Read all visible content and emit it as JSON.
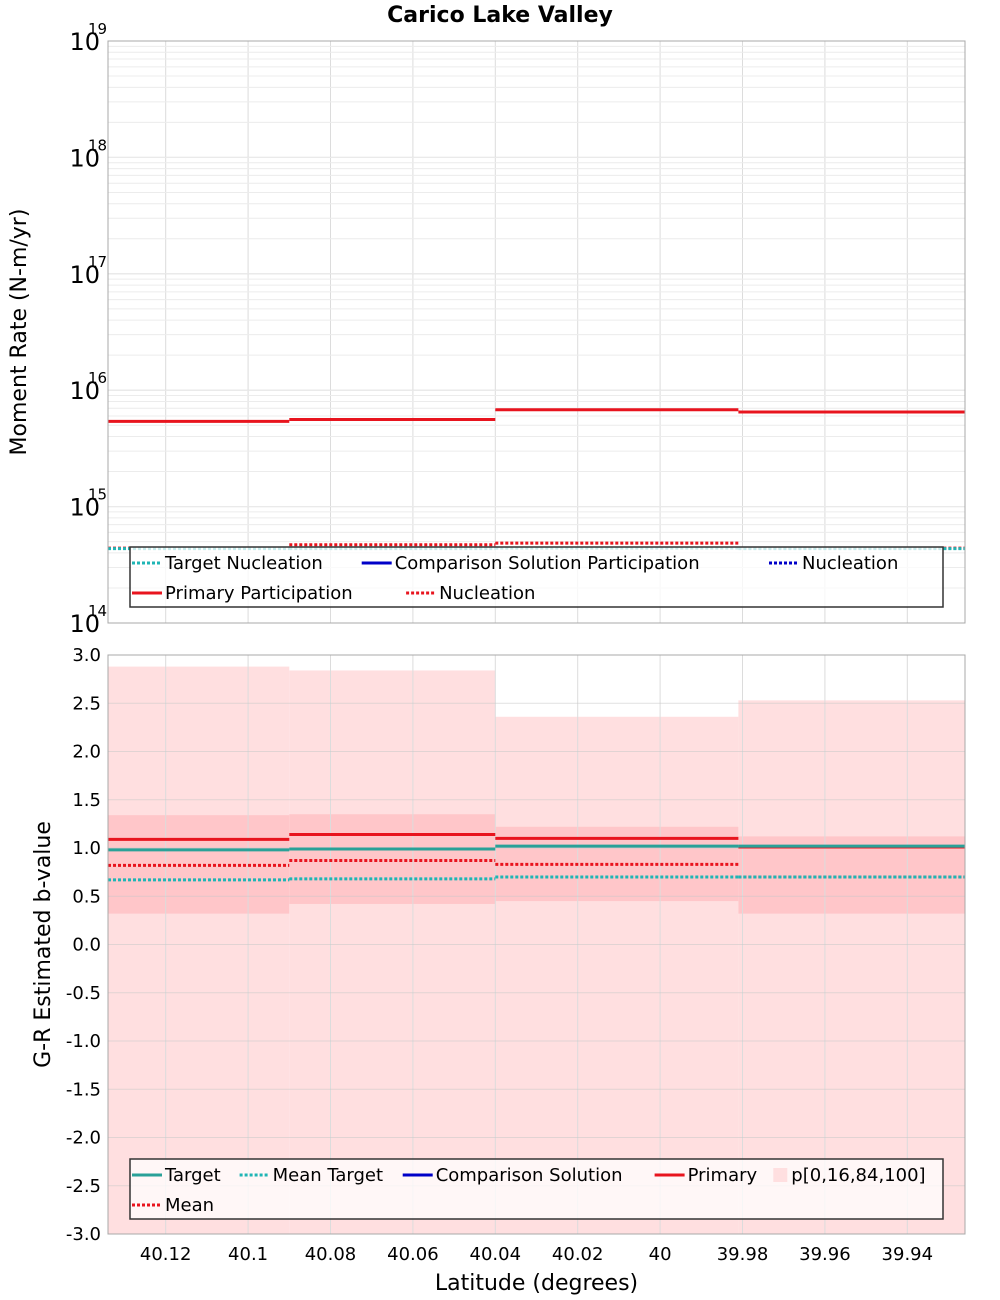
{
  "colors": {
    "target": "#2aa198",
    "mean_target": "#1fb5b5",
    "comparison": "#0000c8",
    "primary": "#e8141e",
    "band_outer": "#ffdfe0",
    "band_inner": "#ffc6c9"
  },
  "chart_data": [
    {
      "type": "line",
      "title": "Carico Lake Valley",
      "xlabel": "",
      "ylabel": "Moment Rate (N-m/yr)",
      "y_scale": "log",
      "ylim": [
        100000000000000.0,
        1e+19
      ],
      "xlim": [
        40.134,
        39.926
      ],
      "x_reversed": true,
      "grid": true,
      "legend_position": "bottom",
      "y_ticks": [
        {
          "base": "10",
          "exp": "14"
        },
        {
          "base": "10",
          "exp": "15"
        },
        {
          "base": "10",
          "exp": "16"
        },
        {
          "base": "10",
          "exp": "17"
        },
        {
          "base": "10",
          "exp": "18"
        },
        {
          "base": "10",
          "exp": "19"
        }
      ],
      "bin_edges": [
        40.134,
        40.09,
        40.04,
        39.981,
        39.926
      ],
      "series": [
        {
          "name": "Primary Participation",
          "style": "solid",
          "color": "primary",
          "values": [
            5400000000000000.0,
            5600000000000000.0,
            6800000000000000.0,
            6500000000000000.0
          ]
        },
        {
          "name": "Nucleation",
          "style": "dotted",
          "color": "primary",
          "values": [
            440000000000000.0,
            470000000000000.0,
            485000000000000.0,
            440000000000000.0
          ]
        },
        {
          "name": "Target Nucleation",
          "style": "dotted",
          "color": "mean_target",
          "values": [
            435000000000000.0,
            435000000000000.0,
            440000000000000.0,
            435000000000000.0
          ]
        },
        {
          "name": "Comparison Solution Participation",
          "style": "solid",
          "color": "comparison",
          "values": null
        },
        {
          "name": "Nucleation",
          "style": "dotted",
          "color": "comparison",
          "values": null,
          "legend_group": "comparison"
        }
      ],
      "legend": {
        "row1": [
          {
            "label": "Target Nucleation",
            "style": "dotted",
            "color": "mean_target"
          },
          {
            "label": "Comparison Solution Participation",
            "style": "solid",
            "color": "comparison"
          },
          {
            "label": "Nucleation",
            "style": "dotted",
            "color": "comparison"
          }
        ],
        "row2": [
          {
            "label": "Primary Participation",
            "style": "solid",
            "color": "primary"
          },
          {
            "label": "Nucleation",
            "style": "dotted",
            "color": "primary"
          }
        ]
      }
    },
    {
      "type": "line",
      "title": "",
      "xlabel": "Latitude (degrees)",
      "ylabel": "G-R Estimated b-value",
      "ylim": [
        -3.0,
        3.0
      ],
      "xlim": [
        40.134,
        39.926
      ],
      "x_reversed": true,
      "grid": true,
      "legend_position": "bottom",
      "y_ticks": [
        "-3.0",
        "-2.5",
        "-2.0",
        "-1.5",
        "-1.0",
        "-0.5",
        "0.0",
        "0.5",
        "1.0",
        "1.5",
        "2.0",
        "2.5",
        "3.0"
      ],
      "x_ticks": [
        {
          "value": 40.12,
          "label": "40.12"
        },
        {
          "value": 40.1,
          "label": "40.1"
        },
        {
          "value": 40.08,
          "label": "40.08"
        },
        {
          "value": 40.06,
          "label": "40.06"
        },
        {
          "value": 40.04,
          "label": "40.04"
        },
        {
          "value": 40.02,
          "label": "40.02"
        },
        {
          "value": 40.0,
          "label": "40"
        },
        {
          "value": 39.98,
          "label": "39.98"
        },
        {
          "value": 39.96,
          "label": "39.96"
        },
        {
          "value": 39.94,
          "label": "39.94"
        }
      ],
      "bin_edges": [
        40.134,
        40.09,
        40.04,
        39.981,
        39.926
      ],
      "bands": {
        "p0": [
          -3.0,
          -3.0,
          -3.0,
          -3.0
        ],
        "p16": [
          0.32,
          0.42,
          0.45,
          0.32
        ],
        "p84": [
          1.34,
          1.35,
          1.22,
          1.12
        ],
        "p100": [
          2.88,
          2.84,
          2.36,
          2.53
        ]
      },
      "series": [
        {
          "name": "Primary",
          "style": "solid",
          "color": "primary",
          "values": [
            1.09,
            1.14,
            1.1,
            1.01
          ]
        },
        {
          "name": "Mean",
          "style": "dotted",
          "color": "primary",
          "values": [
            0.82,
            0.87,
            0.83,
            0.7
          ]
        },
        {
          "name": "Target",
          "style": "solid",
          "color": "target",
          "values": [
            0.98,
            0.99,
            1.02,
            1.02
          ]
        },
        {
          "name": "Mean Target",
          "style": "dotted",
          "color": "mean_target",
          "values": [
            0.67,
            0.68,
            0.7,
            0.7
          ]
        },
        {
          "name": "Comparison Solution",
          "style": "solid",
          "color": "comparison",
          "values": null
        }
      ],
      "legend": {
        "row1": [
          {
            "label": "Target",
            "style": "solid",
            "color": "target"
          },
          {
            "label": "Mean Target",
            "style": "dotted",
            "color": "mean_target"
          },
          {
            "label": "Comparison Solution",
            "style": "solid",
            "color": "comparison"
          },
          {
            "label": "Primary",
            "style": "solid",
            "color": "primary"
          },
          {
            "label": "p[0,16,84,100]",
            "style": "box",
            "color": "band_outer"
          }
        ],
        "row2": [
          {
            "label": "Mean",
            "style": "dotted",
            "color": "primary"
          }
        ]
      }
    }
  ]
}
